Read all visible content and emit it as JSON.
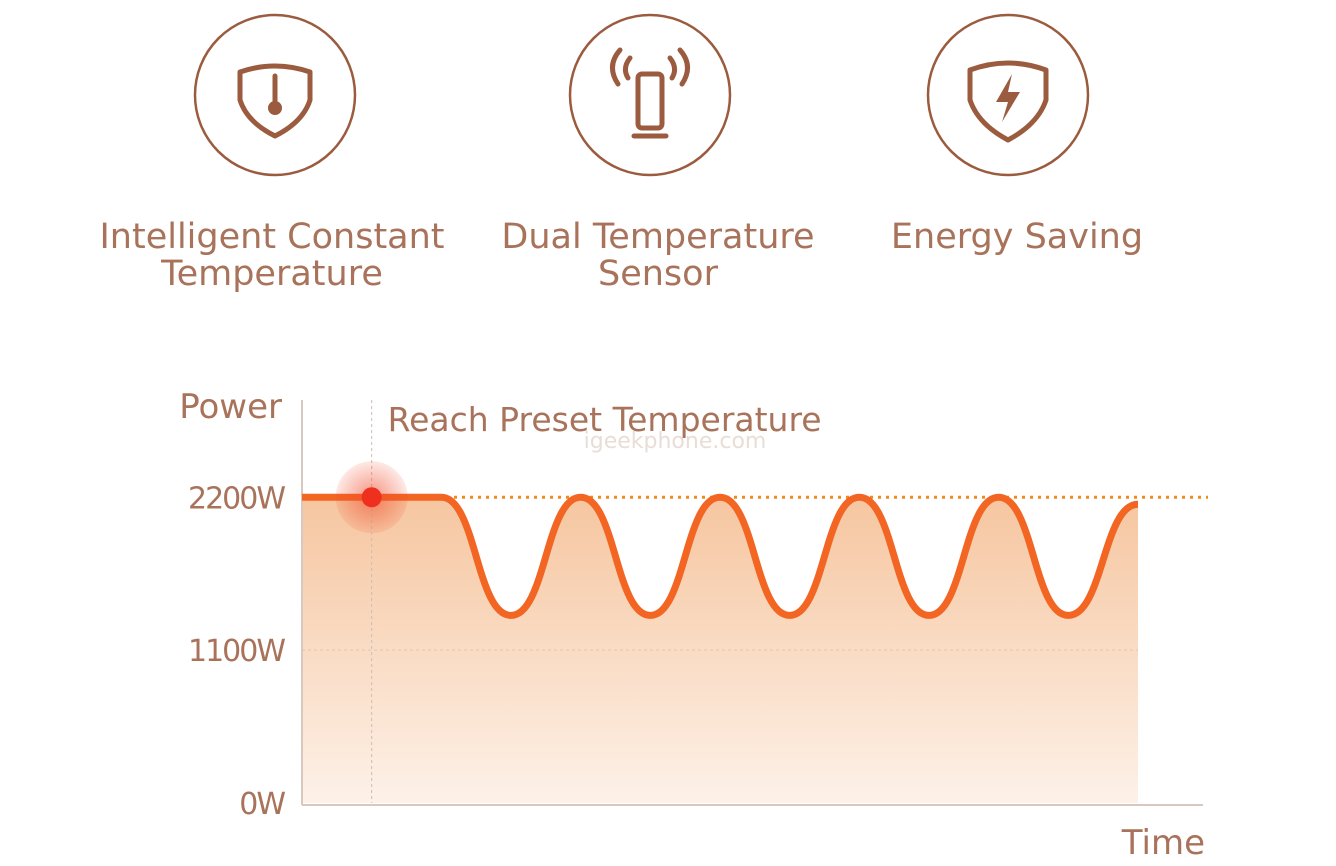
{
  "features": [
    {
      "lines": [
        "Intelligent Constant",
        "Temperature"
      ]
    },
    {
      "lines": [
        "Dual Temperature",
        "Sensor"
      ]
    },
    {
      "lines": [
        "Energy Saving"
      ]
    }
  ],
  "chart_data": {
    "type": "line",
    "y_label": "Power",
    "x_label": "Time",
    "annotation": "Reach Preset Temperature",
    "watermark": "igeekphone.com",
    "categories": [
      null,
      null,
      null,
      null,
      null,
      null,
      null,
      null,
      null,
      null,
      null,
      null,
      null
    ],
    "values": [
      2200,
      2200,
      2200,
      1350,
      2200,
      1350,
      2200,
      1350,
      2200,
      1350,
      2200,
      1350,
      2150
    ],
    "color": "#f26522",
    "ylim": [
      0,
      2900
    ],
    "yticks": [
      {
        "value": 0,
        "label": "0W"
      },
      {
        "value": 1100,
        "label": "1100W"
      },
      {
        "value": 2200,
        "label": "2200W"
      }
    ],
    "grid": true,
    "annotation_index": 1
  }
}
